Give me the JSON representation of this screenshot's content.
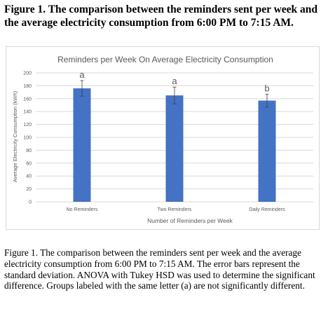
{
  "figure": {
    "heading": "Figure 1. The comparison between the reminders sent per week and the average electricity consumption from 6:00 PM to 7:15 AM.",
    "caption": "Figure 1. The comparison between the reminders sent per week and the average electricity consumption from 6:00 PM to 7:15 AM. The error bars represent the standard deviation. ANOVA with Tukey HSD was used to determine the significant difference. Groups labeled with the same letter (a) are not significantly different."
  },
  "chart_data": {
    "type": "bar",
    "title": "Reminders per Week On Average Electricity Consumption",
    "xlabel": "Number of Reminders per Week",
    "ylabel": "Average Electricity Consumption (kWh)",
    "categories": [
      "No Reminders",
      "Two Reminders",
      "Daily Reminders"
    ],
    "values": [
      176,
      165,
      157
    ],
    "error": [
      12,
      13,
      10
    ],
    "group_letters": [
      "a",
      "a",
      "b"
    ],
    "ylim": [
      0,
      200
    ],
    "yticks": [
      0,
      20,
      40,
      60,
      80,
      100,
      120,
      140,
      160,
      180,
      200
    ],
    "grid": true,
    "legend": "none",
    "bar_color": "#4472c4",
    "grid_color": "#d9d9d9",
    "text_color": "#595959"
  }
}
